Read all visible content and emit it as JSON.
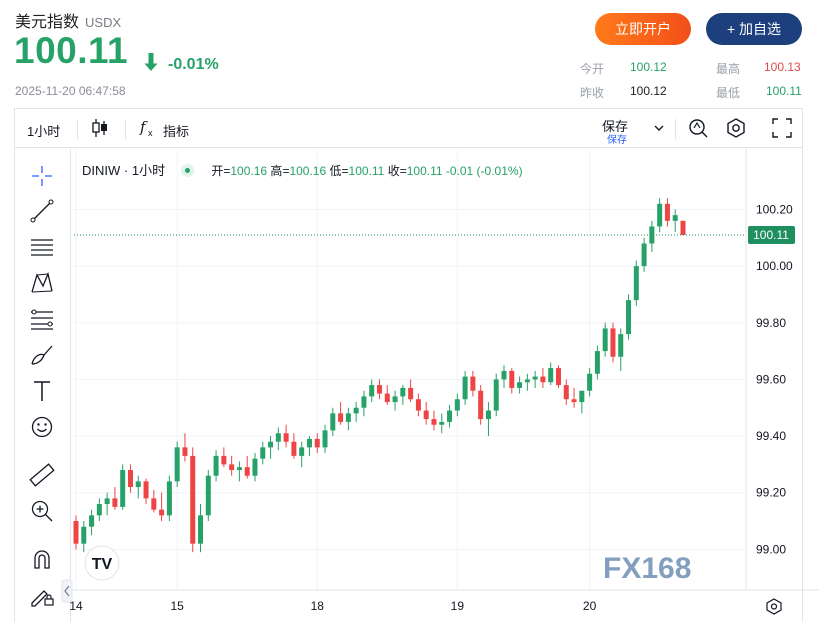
{
  "header": {
    "title": "美元指数",
    "symbol": "USDX",
    "price": "100.11",
    "change": "-0.01%",
    "timestamp": "2025-11-20 06:47:58",
    "open_account_label": "立即开户",
    "add_fav_label": "+ 加自选"
  },
  "stats": {
    "today_open_label": "今开",
    "today_open": "100.12",
    "high_label": "最高",
    "high": "100.13",
    "prev_close_label": "昨收",
    "prev_close": "100.12",
    "low_label": "最低",
    "low": "100.11"
  },
  "toolbar": {
    "interval": "1小时",
    "indicators_label": "指标",
    "save_label": "保存",
    "save_sub_label": "保存"
  },
  "legend": {
    "symbol": "DINIW",
    "interval": "1小时",
    "open_label": "开",
    "open": "100.16",
    "high_label": "高",
    "high": "100.16",
    "low_label": "低",
    "low": "100.11",
    "close_label": "收",
    "close": "100.11",
    "change": "-0.01 (-0.01%)"
  },
  "watermark": "FX168",
  "colors": {
    "up": "#26a269",
    "down": "#ef4444",
    "accent_orange": "#f25a1a",
    "accent_navy": "#1d3f7d",
    "price_tag": "#1f8f5f"
  },
  "chart_data": {
    "type": "candlestick",
    "x_labels": [
      "14",
      "15",
      "18",
      "19",
      "20"
    ],
    "y_ticks": [
      99.0,
      99.2,
      99.4,
      99.6,
      99.8,
      100.0,
      100.2
    ],
    "y_tick_labels": [
      "99.00",
      "99.20",
      "99.40",
      "99.60",
      "99.80",
      "100.00",
      "100.20"
    ],
    "ylim": [
      98.86,
      100.41
    ],
    "last_price": 100.11,
    "last_price_label": "100.11",
    "candles": [
      [
        99.1,
        99.12,
        99.0,
        99.02
      ],
      [
        99.02,
        99.1,
        98.99,
        99.08
      ],
      [
        99.08,
        99.14,
        99.05,
        99.12
      ],
      [
        99.12,
        99.18,
        99.1,
        99.16
      ],
      [
        99.16,
        99.2,
        99.12,
        99.18
      ],
      [
        99.18,
        99.22,
        99.14,
        99.15
      ],
      [
        99.15,
        99.3,
        99.14,
        99.28
      ],
      [
        99.28,
        99.3,
        99.2,
        99.22
      ],
      [
        99.22,
        99.26,
        99.18,
        99.24
      ],
      [
        99.24,
        99.25,
        99.16,
        99.18
      ],
      [
        99.18,
        99.21,
        99.13,
        99.14
      ],
      [
        99.14,
        99.2,
        99.1,
        99.12
      ],
      [
        99.12,
        99.26,
        99.1,
        99.24
      ],
      [
        99.24,
        99.38,
        99.22,
        99.36
      ],
      [
        99.36,
        99.41,
        99.31,
        99.33
      ],
      [
        99.33,
        99.36,
        98.99,
        99.02
      ],
      [
        99.02,
        99.16,
        98.99,
        99.12
      ],
      [
        99.12,
        99.28,
        99.1,
        99.26
      ],
      [
        99.26,
        99.35,
        99.24,
        99.33
      ],
      [
        99.33,
        99.36,
        99.29,
        99.3
      ],
      [
        99.3,
        99.33,
        99.26,
        99.28
      ],
      [
        99.28,
        99.31,
        99.24,
        99.29
      ],
      [
        99.29,
        99.33,
        99.25,
        99.26
      ],
      [
        99.26,
        99.34,
        99.24,
        99.32
      ],
      [
        99.32,
        99.38,
        99.3,
        99.36
      ],
      [
        99.36,
        99.4,
        99.32,
        99.38
      ],
      [
        99.38,
        99.43,
        99.35,
        99.41
      ],
      [
        99.41,
        99.44,
        99.36,
        99.38
      ],
      [
        99.38,
        99.41,
        99.32,
        99.33
      ],
      [
        99.33,
        99.38,
        99.29,
        99.36
      ],
      [
        99.36,
        99.4,
        99.33,
        99.39
      ],
      [
        99.39,
        99.41,
        99.34,
        99.36
      ],
      [
        99.36,
        99.44,
        99.34,
        99.42
      ],
      [
        99.42,
        99.5,
        99.4,
        99.48
      ],
      [
        99.48,
        99.52,
        99.44,
        99.45
      ],
      [
        99.45,
        99.5,
        99.42,
        99.48
      ],
      [
        99.48,
        99.52,
        99.45,
        99.5
      ],
      [
        99.5,
        99.56,
        99.47,
        99.54
      ],
      [
        99.54,
        99.6,
        99.52,
        99.58
      ],
      [
        99.58,
        99.6,
        99.53,
        99.55
      ],
      [
        99.55,
        99.58,
        99.51,
        99.52
      ],
      [
        99.52,
        99.56,
        99.49,
        99.54
      ],
      [
        99.54,
        99.58,
        99.51,
        99.57
      ],
      [
        99.57,
        99.6,
        99.52,
        99.53
      ],
      [
        99.53,
        99.55,
        99.47,
        99.49
      ],
      [
        99.49,
        99.52,
        99.44,
        99.46
      ],
      [
        99.46,
        99.49,
        99.42,
        99.44
      ],
      [
        99.44,
        99.48,
        99.41,
        99.45
      ],
      [
        99.45,
        99.51,
        99.43,
        99.49
      ],
      [
        99.49,
        99.55,
        99.47,
        99.53
      ],
      [
        99.53,
        99.63,
        99.51,
        99.61
      ],
      [
        99.61,
        99.63,
        99.54,
        99.56
      ],
      [
        99.56,
        99.58,
        99.44,
        99.46
      ],
      [
        99.46,
        99.52,
        99.4,
        99.49
      ],
      [
        99.49,
        99.62,
        99.47,
        99.6
      ],
      [
        99.6,
        99.65,
        99.57,
        99.63
      ],
      [
        99.63,
        99.64,
        99.55,
        99.57
      ],
      [
        99.57,
        99.61,
        99.55,
        99.59
      ],
      [
        99.59,
        99.62,
        99.56,
        99.6
      ],
      [
        99.6,
        99.63,
        99.57,
        99.61
      ],
      [
        99.61,
        99.64,
        99.57,
        99.59
      ],
      [
        99.59,
        99.66,
        99.58,
        99.64
      ],
      [
        99.64,
        99.65,
        99.57,
        99.58
      ],
      [
        99.58,
        99.6,
        99.51,
        99.53
      ],
      [
        99.53,
        99.57,
        99.5,
        99.52
      ],
      [
        99.52,
        99.55,
        99.48,
        99.56
      ],
      [
        99.56,
        99.64,
        99.54,
        99.62
      ],
      [
        99.62,
        99.72,
        99.6,
        99.7
      ],
      [
        99.7,
        99.8,
        99.68,
        99.78
      ],
      [
        99.78,
        99.8,
        99.66,
        99.68
      ],
      [
        99.68,
        99.78,
        99.63,
        99.76
      ],
      [
        99.76,
        99.9,
        99.74,
        99.88
      ],
      [
        99.88,
        100.02,
        99.86,
        100.0
      ],
      [
        100.0,
        100.1,
        99.98,
        100.08
      ],
      [
        100.08,
        100.16,
        100.05,
        100.14
      ],
      [
        100.14,
        100.24,
        100.12,
        100.22
      ],
      [
        100.22,
        100.24,
        100.14,
        100.16
      ],
      [
        100.16,
        100.2,
        100.12,
        100.18
      ],
      [
        100.16,
        100.16,
        100.11,
        100.11
      ]
    ],
    "x_label_index": [
      0,
      13,
      31,
      49,
      66
    ],
    "grid": true
  }
}
